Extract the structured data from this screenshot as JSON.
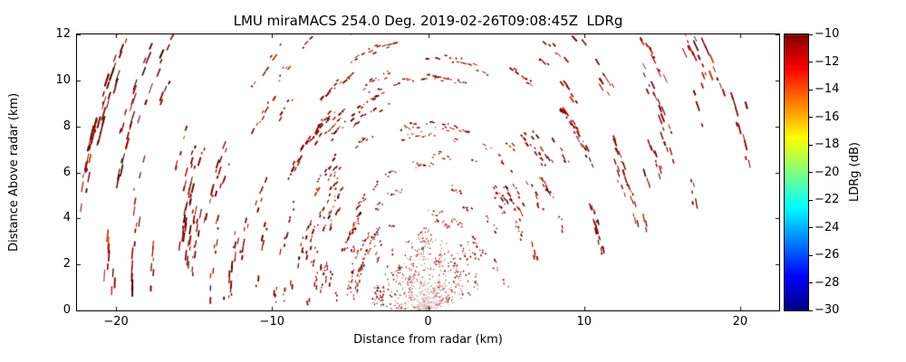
{
  "chart_data": {
    "type": "scatter",
    "title": "LMU miraMACS 254.0 Deg. 2019-02-26T09:08:45Z  LDRg",
    "xlabel": "Distance from radar (km)",
    "ylabel": "Distance Above radar (km)",
    "xlim": [
      -22.5,
      22.5
    ],
    "ylim": [
      0,
      12
    ],
    "xticks": [
      -20,
      -10,
      0,
      10,
      20
    ],
    "yticks": [
      0,
      2,
      4,
      6,
      8,
      10,
      12
    ],
    "grid": false,
    "legend": "none",
    "background": "#ffffff",
    "colorbar": {
      "label": "LDRg (dB)",
      "vmin": -30,
      "vmax": -10,
      "ticks": [
        -10,
        -12,
        -14,
        -16,
        -18,
        -20,
        -22,
        -24,
        -26,
        -28,
        -30
      ],
      "colormap": "jet",
      "stops": [
        {
          "pos": 0.0,
          "color": "#000080"
        },
        {
          "pos": 0.125,
          "color": "#0000ff"
        },
        {
          "pos": 0.375,
          "color": "#00ffff"
        },
        {
          "pos": 0.625,
          "color": "#ffff00"
        },
        {
          "pos": 0.875,
          "color": "#ff0000"
        },
        {
          "pos": 1.0,
          "color": "#800000"
        }
      ]
    },
    "speckle": {
      "description": "RHI fan of ghost-echo speckle dashes aligned along range-gate arcs centered on the radar at (0,0); most echo values near -10 to -13 dB (dark red in jet colormap); empty wedge below lowest beam elevation on both sides",
      "values_db_range": [
        -13,
        -10
      ],
      "seed": 42,
      "elevation_min_deg": 11,
      "elevation_max_deg": 178,
      "range_min_km": 0.5,
      "range_max_km": 23.2,
      "num_gates": 55,
      "segments_per_gate_min": 3,
      "segments_per_gate_max": 6,
      "dropout": 0.32,
      "core_points": 800,
      "colors": [
        {
          "color": "#6f0000",
          "weight": 0.28
        },
        {
          "color": "#8b0000",
          "weight": 0.28
        },
        {
          "color": "#a40000",
          "weight": 0.18
        },
        {
          "color": "#500000",
          "weight": 0.12
        },
        {
          "color": "#c23b00",
          "weight": 0.07
        },
        {
          "color": "#2d0000",
          "weight": 0.07
        }
      ]
    }
  }
}
